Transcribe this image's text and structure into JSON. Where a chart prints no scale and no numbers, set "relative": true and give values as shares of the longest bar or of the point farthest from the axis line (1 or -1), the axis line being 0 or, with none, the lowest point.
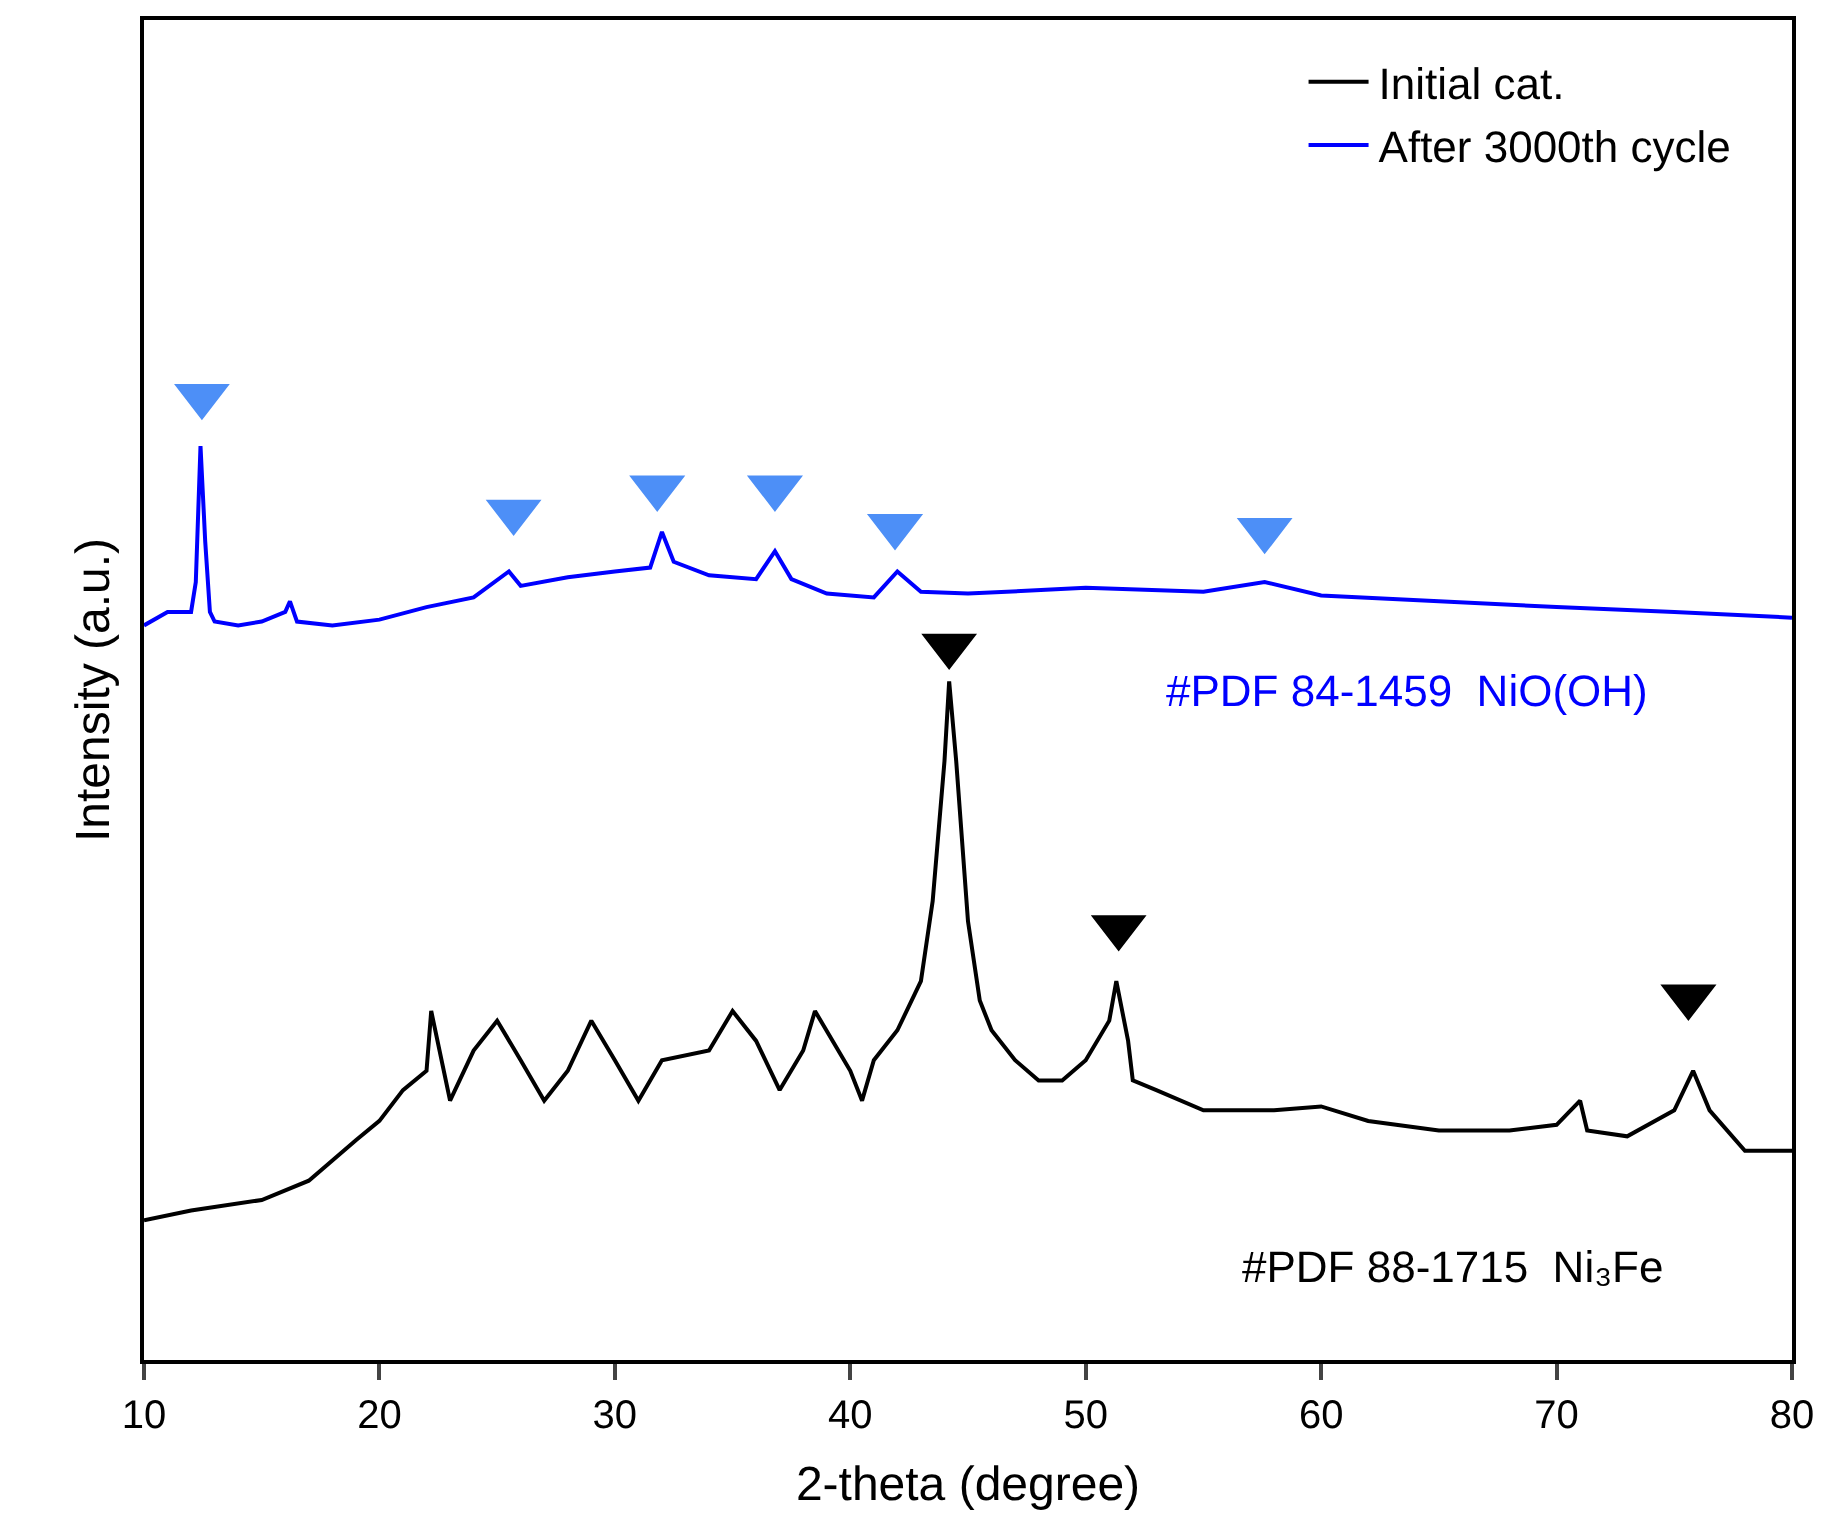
{
  "chart_data": {
    "type": "line",
    "relative": true,
    "xlabel": "2-theta (degree)",
    "ylabel": "Intensity (a.u.)",
    "xlim": [
      10,
      80
    ],
    "xticks": [
      10,
      20,
      30,
      40,
      50,
      60,
      70,
      80
    ],
    "tick_labels": "x",
    "legend": "top right",
    "line_style": "solid",
    "series": [
      {
        "name": "Initial cat.",
        "color": "#000000",
        "x": [
          10,
          12,
          15,
          17,
          19,
          20,
          21,
          22,
          22.2,
          23,
          24,
          25,
          26,
          27,
          28,
          29,
          30,
          31,
          32,
          34,
          35,
          36,
          37,
          38,
          38.5,
          40,
          40.5,
          41,
          42,
          43,
          43.5,
          44,
          44.2,
          44.5,
          45,
          45.5,
          46,
          47,
          48,
          49,
          50,
          51,
          51.3,
          51.8,
          52,
          53,
          55,
          58,
          60,
          62,
          65,
          68,
          70,
          71,
          71.3,
          73,
          75,
          75.8,
          76.5,
          78,
          80
        ],
        "values": [
          0.145,
          0.155,
          0.166,
          0.186,
          0.228,
          0.248,
          0.28,
          0.3,
          0.362,
          0.269,
          0.321,
          0.352,
          0.311,
          0.269,
          0.3,
          0.352,
          0.311,
          0.269,
          0.311,
          0.321,
          0.362,
          0.331,
          0.28,
          0.321,
          0.362,
          0.3,
          0.269,
          0.311,
          0.342,
          0.393,
          0.476,
          0.621,
          0.704,
          0.621,
          0.455,
          0.373,
          0.342,
          0.311,
          0.29,
          0.29,
          0.311,
          0.352,
          0.393,
          0.331,
          0.29,
          0.28,
          0.259,
          0.259,
          0.263,
          0.248,
          0.238,
          0.238,
          0.244,
          0.269,
          0.238,
          0.232,
          0.259,
          0.3,
          0.259,
          0.217,
          0.217
        ]
      },
      {
        "name": "After 3000th cycle",
        "color": "#0000ff",
        "x": [
          10,
          11,
          12,
          12.2,
          12.4,
          12.6,
          12.8,
          13,
          14,
          15,
          16,
          16.2,
          16.5,
          18,
          20,
          22,
          24,
          25.5,
          26,
          28,
          30,
          31.5,
          32,
          32.5,
          34,
          36,
          36.8,
          37.5,
          39,
          41,
          42,
          43,
          45,
          50,
          55,
          57.6,
          60,
          65,
          70,
          75,
          80
        ],
        "values": [
          0.762,
          0.776,
          0.776,
          0.807,
          0.948,
          0.849,
          0.776,
          0.766,
          0.762,
          0.766,
          0.776,
          0.787,
          0.766,
          0.762,
          0.768,
          0.781,
          0.791,
          0.818,
          0.803,
          0.812,
          0.818,
          0.822,
          0.859,
          0.828,
          0.814,
          0.81,
          0.839,
          0.81,
          0.795,
          0.791,
          0.818,
          0.797,
          0.795,
          0.801,
          0.797,
          0.807,
          0.793,
          0.787,
          0.781,
          0.776,
          0.77
        ]
      },
      {
        "type": "scatter",
        "marker": "triangle",
        "color": "#4d8ff7",
        "x": [
          12.46,
          25.7,
          31.8,
          36.8,
          41.9,
          57.6
        ],
        "values": [
          1.0,
          0.88,
          0.905,
          0.905,
          0.865,
          0.861
        ]
      },
      {
        "type": "scatter",
        "marker": "triangle",
        "color": "#000000",
        "x": [
          44.2,
          51.4,
          75.6
        ],
        "values": [
          0.741,
          0.449,
          0.377
        ]
      }
    ],
    "annotations": [
      "#PDF 84-1459  NiO(OH)",
      "#PDF 88-1715  Ni₃Fe"
    ]
  }
}
